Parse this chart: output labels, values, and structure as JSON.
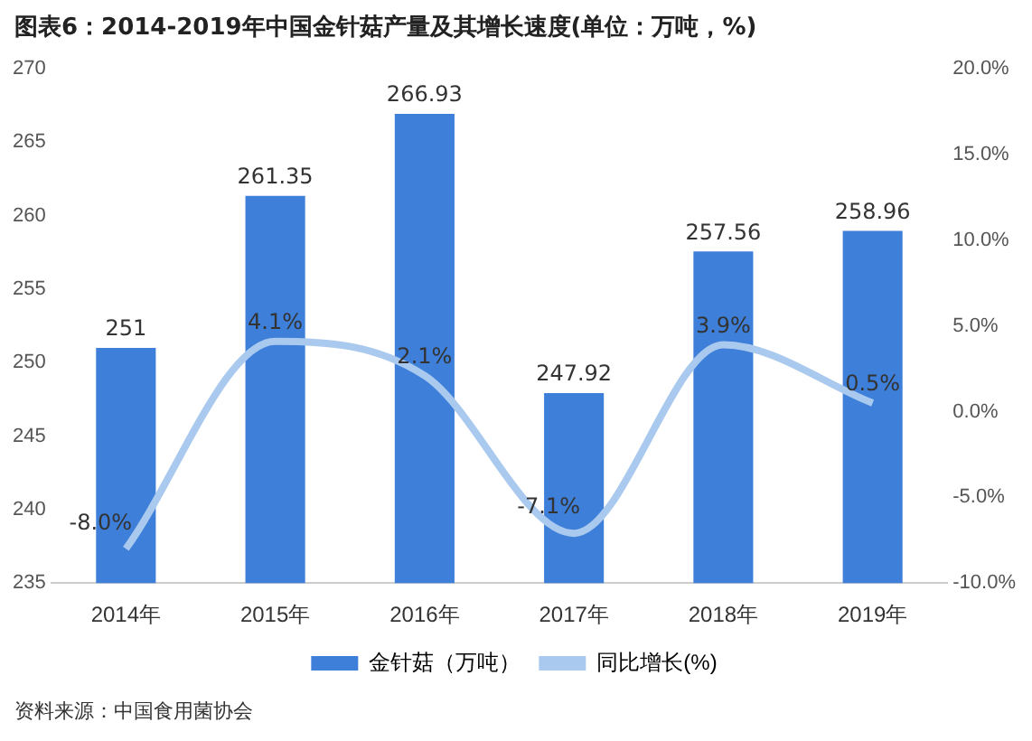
{
  "chart_data": {
    "type": "bar",
    "title": "图表6：2014-2019年中国金针菇产量及其增长速度(单位：万吨，%)",
    "categories": [
      "2014年",
      "2015年",
      "2016年",
      "2017年",
      "2018年",
      "2019年"
    ],
    "series": [
      {
        "name": "金针菇（万吨）",
        "color": "#3d7fd9",
        "values": [
          251,
          261.35,
          266.93,
          247.92,
          257.56,
          258.96
        ],
        "value_labels": [
          "251",
          "261.35",
          "266.93",
          "247.92",
          "257.56",
          "258.96"
        ]
      },
      {
        "name": "同比增长(%)",
        "type": "line",
        "axis": "y2",
        "color": "#a9c9ee",
        "values": [
          -8.0,
          4.1,
          2.1,
          -7.1,
          3.9,
          0.5
        ],
        "value_labels": [
          "-8.0%",
          "4.1%",
          "2.1%",
          "-7.1%",
          "3.9%",
          "0.5%"
        ]
      }
    ],
    "ylim": [
      235,
      270
    ],
    "yticks": [
      235,
      240,
      245,
      250,
      255,
      260,
      265,
      270
    ],
    "y2lim": [
      -10,
      20
    ],
    "y2ticks": [
      {
        "value": -10,
        "label": "-10.0%"
      },
      {
        "value": -5,
        "label": "-5.0%"
      },
      {
        "value": 0,
        "label": "0.0%"
      },
      {
        "value": 5,
        "label": "5.0%"
      },
      {
        "value": 10,
        "label": "10.0%"
      },
      {
        "value": 15,
        "label": "15.0%"
      },
      {
        "value": 20,
        "label": "20.0%"
      }
    ],
    "legend": "bottom",
    "grid": false,
    "marker": "none",
    "annotations": [
      "资料来源：中国食用菌协会"
    ]
  }
}
